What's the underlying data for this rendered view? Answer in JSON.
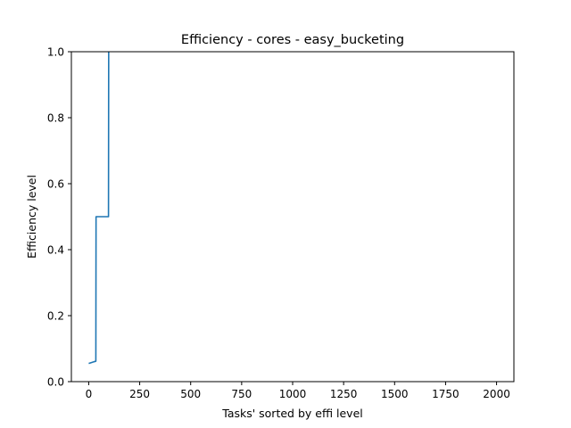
{
  "chart_data": {
    "type": "line",
    "title": "Efficiency - cores - easy_bucketing",
    "xlabel": "Tasks' sorted by effi level",
    "ylabel": "Efficiency level",
    "xlim": [
      -85,
      2085
    ],
    "ylim": [
      0,
      1.0
    ],
    "xticks": [
      0,
      250,
      500,
      750,
      1000,
      1250,
      1500,
      1750,
      2000
    ],
    "xtick_labels": [
      "0",
      "250",
      "500",
      "750",
      "1000",
      "1250",
      "1500",
      "1750",
      "2000"
    ],
    "yticks": [
      0.0,
      0.2,
      0.4,
      0.6,
      0.8,
      1.0
    ],
    "ytick_labels": [
      "0.0",
      "0.2",
      "0.4",
      "0.6",
      "0.8",
      "1.0"
    ],
    "grid": false,
    "series": [
      {
        "color": "#1f77b4",
        "x": [
          0,
          5,
          15,
          20,
          25,
          30,
          35,
          36,
          40,
          60,
          80,
          97,
          98
        ],
        "y": [
          0.055,
          0.056,
          0.058,
          0.059,
          0.06,
          0.061,
          0.062,
          0.5,
          0.5,
          0.5,
          0.5,
          0.5,
          1.0
        ]
      }
    ]
  }
}
